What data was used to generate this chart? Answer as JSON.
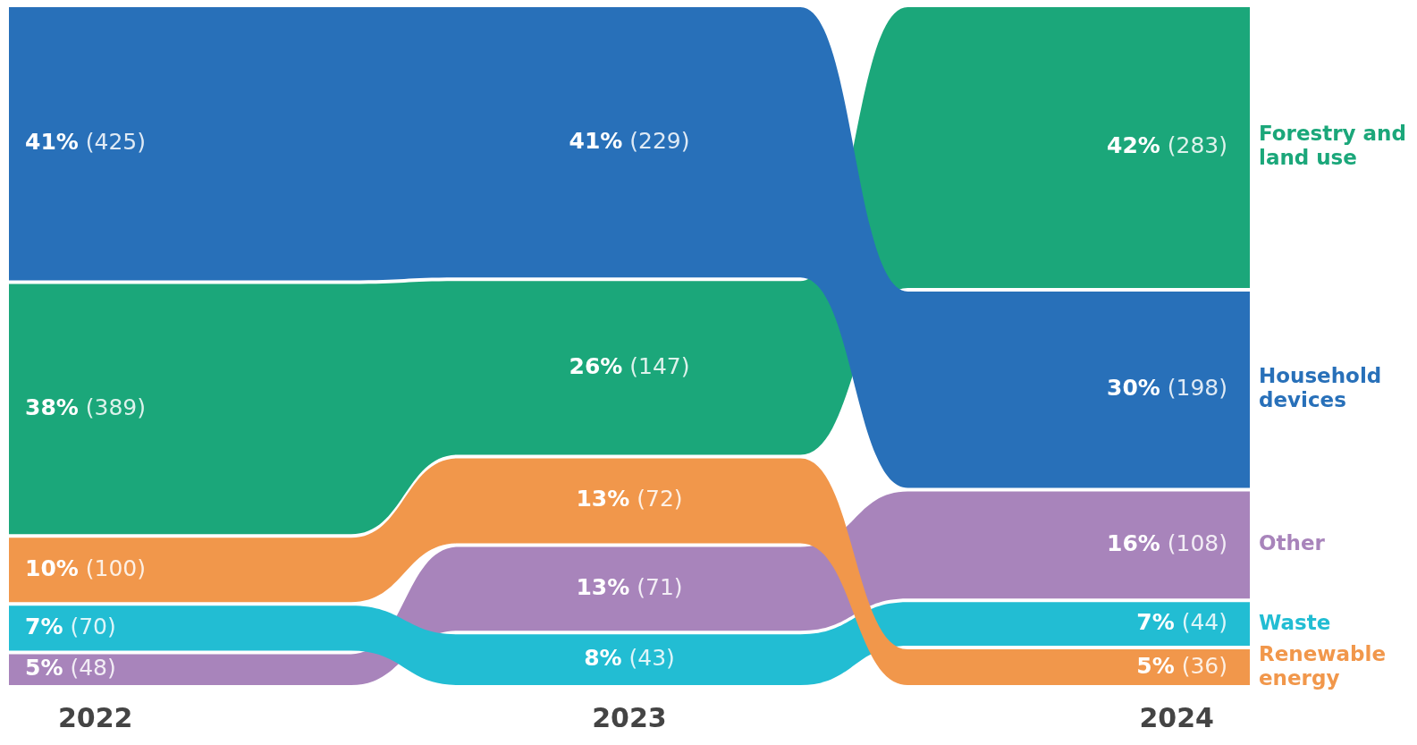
{
  "chart_data": {
    "type": "other",
    "categories": [
      "2022",
      "2023",
      "2024"
    ],
    "series": [
      {
        "name": "Forestry and land use",
        "color": "#1ba77a",
        "values": [
          389,
          147,
          283
        ],
        "value_labels": [
          "38% (389)",
          "26% (147)",
          "42% (283)"
        ]
      },
      {
        "name": "Household devices",
        "color": "#2870b9",
        "values": [
          425,
          229,
          198
        ],
        "value_labels": [
          "41% (425)",
          "41% (229)",
          "30% (198)"
        ]
      },
      {
        "name": "Other",
        "color": "#a884bb",
        "values": [
          48,
          71,
          108
        ],
        "value_labels": [
          "5% (48)",
          "13% (71)",
          "16% (108)"
        ]
      },
      {
        "name": "Waste",
        "color": "#22bdd3",
        "values": [
          70,
          43,
          44
        ],
        "value_labels": [
          "7% (70)",
          "8% (43)",
          "7% (44)"
        ]
      },
      {
        "name": "Renewable energy",
        "color": "#f1974b",
        "values": [
          100,
          72,
          36
        ],
        "value_labels": [
          "10% (100)",
          "13% (72)",
          "5% (36)"
        ]
      }
    ]
  }
}
